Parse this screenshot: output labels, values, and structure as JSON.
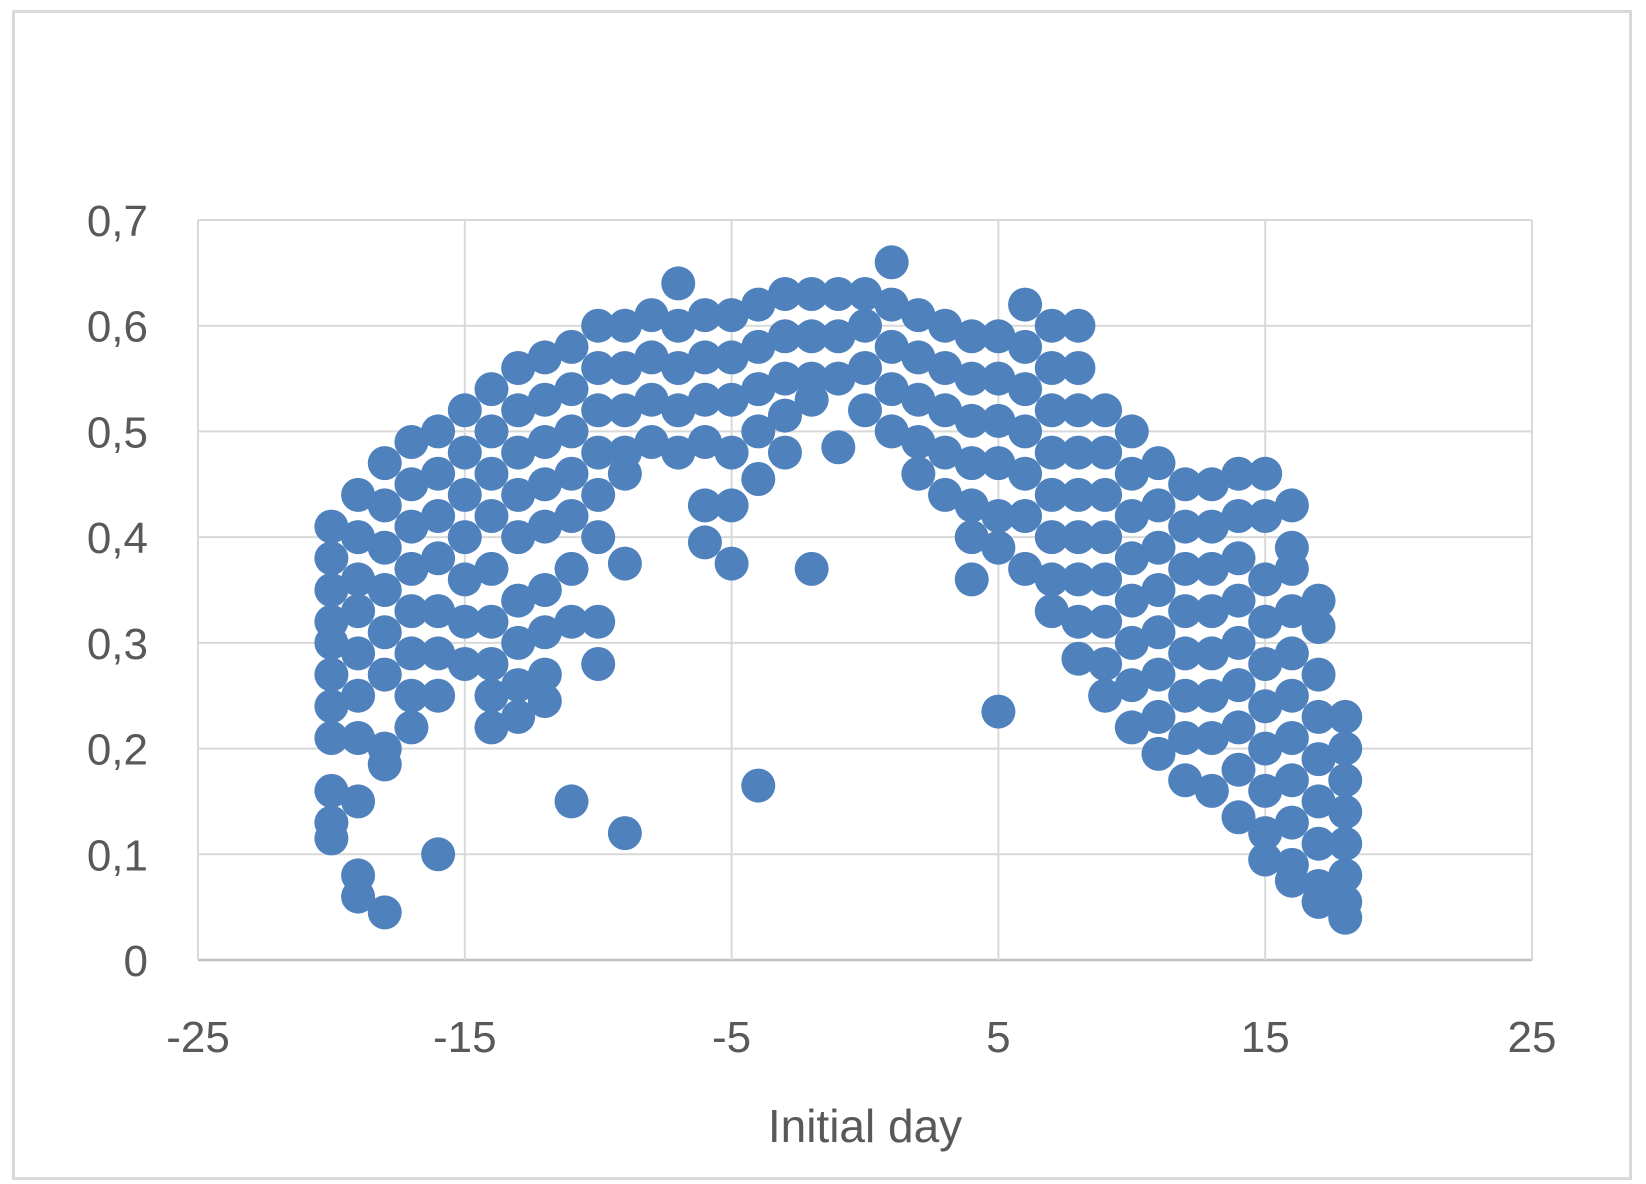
{
  "chart_data": {
    "type": "scatter",
    "title": "",
    "xlabel": "Initial day",
    "ylabel": "",
    "xlim": [
      -25,
      25
    ],
    "ylim": [
      0,
      0.7
    ],
    "x_ticks": [
      -25,
      -15,
      -5,
      5,
      15,
      25
    ],
    "y_ticks": [
      0,
      0.1,
      0.2,
      0.3,
      0.4,
      0.5,
      0.6,
      0.7
    ],
    "x_tick_labels": [
      "-25",
      "-15",
      "-5",
      "5",
      "15",
      "25"
    ],
    "y_tick_labels": [
      "0",
      "0,1",
      "0,2",
      "0,3",
      "0,4",
      "0,5",
      "0,6",
      "0,7"
    ],
    "grid": true,
    "legend": "none",
    "marker_color": "#4f81bd",
    "series": [
      {
        "points": [
          [
            -20,
            0.41
          ],
          [
            -20,
            0.38
          ],
          [
            -20,
            0.35
          ],
          [
            -20,
            0.32
          ],
          [
            -20,
            0.3
          ],
          [
            -20,
            0.27
          ],
          [
            -20,
            0.24
          ],
          [
            -20,
            0.21
          ],
          [
            -20,
            0.16
          ],
          [
            -20,
            0.13
          ],
          [
            -20,
            0.115
          ],
          [
            -19,
            0.44
          ],
          [
            -19,
            0.4
          ],
          [
            -19,
            0.36
          ],
          [
            -19,
            0.33
          ],
          [
            -19,
            0.29
          ],
          [
            -19,
            0.25
          ],
          [
            -19,
            0.21
          ],
          [
            -19,
            0.15
          ],
          [
            -19,
            0.08
          ],
          [
            -19,
            0.06
          ],
          [
            -18,
            0.47
          ],
          [
            -18,
            0.43
          ],
          [
            -18,
            0.39
          ],
          [
            -18,
            0.35
          ],
          [
            -18,
            0.31
          ],
          [
            -18,
            0.27
          ],
          [
            -18,
            0.2
          ],
          [
            -18,
            0.185
          ],
          [
            -18,
            0.045
          ],
          [
            -17,
            0.49
          ],
          [
            -17,
            0.45
          ],
          [
            -17,
            0.41
          ],
          [
            -17,
            0.37
          ],
          [
            -17,
            0.33
          ],
          [
            -17,
            0.29
          ],
          [
            -17,
            0.25
          ],
          [
            -17,
            0.22
          ],
          [
            -16,
            0.5
          ],
          [
            -16,
            0.46
          ],
          [
            -16,
            0.42
          ],
          [
            -16,
            0.38
          ],
          [
            -16,
            0.33
          ],
          [
            -16,
            0.29
          ],
          [
            -16,
            0.25
          ],
          [
            -16,
            0.1
          ],
          [
            -15,
            0.52
          ],
          [
            -15,
            0.48
          ],
          [
            -15,
            0.44
          ],
          [
            -15,
            0.4
          ],
          [
            -15,
            0.36
          ],
          [
            -15,
            0.32
          ],
          [
            -15,
            0.28
          ],
          [
            -14,
            0.54
          ],
          [
            -14,
            0.5
          ],
          [
            -14,
            0.46
          ],
          [
            -14,
            0.42
          ],
          [
            -14,
            0.37
          ],
          [
            -14,
            0.32
          ],
          [
            -14,
            0.28
          ],
          [
            -14,
            0.25
          ],
          [
            -14,
            0.22
          ],
          [
            -13,
            0.56
          ],
          [
            -13,
            0.52
          ],
          [
            -13,
            0.48
          ],
          [
            -13,
            0.44
          ],
          [
            -13,
            0.4
          ],
          [
            -13,
            0.34
          ],
          [
            -13,
            0.3
          ],
          [
            -13,
            0.26
          ],
          [
            -13,
            0.23
          ],
          [
            -12,
            0.57
          ],
          [
            -12,
            0.53
          ],
          [
            -12,
            0.49
          ],
          [
            -12,
            0.45
          ],
          [
            -12,
            0.41
          ],
          [
            -12,
            0.35
          ],
          [
            -12,
            0.31
          ],
          [
            -12,
            0.27
          ],
          [
            -12,
            0.245
          ],
          [
            -11,
            0.58
          ],
          [
            -11,
            0.54
          ],
          [
            -11,
            0.5
          ],
          [
            -11,
            0.46
          ],
          [
            -11,
            0.42
          ],
          [
            -11,
            0.37
          ],
          [
            -11,
            0.32
          ],
          [
            -11,
            0.15
          ],
          [
            -10,
            0.6
          ],
          [
            -10,
            0.56
          ],
          [
            -10,
            0.52
          ],
          [
            -10,
            0.48
          ],
          [
            -10,
            0.44
          ],
          [
            -10,
            0.4
          ],
          [
            -10,
            0.32
          ],
          [
            -10,
            0.28
          ],
          [
            -9,
            0.6
          ],
          [
            -9,
            0.56
          ],
          [
            -9,
            0.52
          ],
          [
            -9,
            0.48
          ],
          [
            -9,
            0.46
          ],
          [
            -9,
            0.375
          ],
          [
            -9,
            0.12
          ],
          [
            -8,
            0.61
          ],
          [
            -8,
            0.57
          ],
          [
            -8,
            0.53
          ],
          [
            -8,
            0.49
          ],
          [
            -7,
            0.64
          ],
          [
            -7,
            0.6
          ],
          [
            -7,
            0.56
          ],
          [
            -7,
            0.52
          ],
          [
            -7,
            0.48
          ],
          [
            -6,
            0.61
          ],
          [
            -6,
            0.57
          ],
          [
            -6,
            0.53
          ],
          [
            -6,
            0.49
          ],
          [
            -6,
            0.43
          ],
          [
            -6,
            0.395
          ],
          [
            -5,
            0.61
          ],
          [
            -5,
            0.57
          ],
          [
            -5,
            0.53
          ],
          [
            -5,
            0.48
          ],
          [
            -5,
            0.43
          ],
          [
            -5,
            0.375
          ],
          [
            -4,
            0.62
          ],
          [
            -4,
            0.58
          ],
          [
            -4,
            0.54
          ],
          [
            -4,
            0.5
          ],
          [
            -4,
            0.455
          ],
          [
            -4,
            0.165
          ],
          [
            -3,
            0.63
          ],
          [
            -3,
            0.59
          ],
          [
            -3,
            0.55
          ],
          [
            -3,
            0.515
          ],
          [
            -3,
            0.48
          ],
          [
            -2,
            0.63
          ],
          [
            -2,
            0.59
          ],
          [
            -2,
            0.55
          ],
          [
            -2,
            0.53
          ],
          [
            -2,
            0.37
          ],
          [
            -1,
            0.63
          ],
          [
            -1,
            0.59
          ],
          [
            -1,
            0.55
          ],
          [
            -1,
            0.485
          ],
          [
            0,
            0.63
          ],
          [
            0,
            0.6
          ],
          [
            0,
            0.56
          ],
          [
            0,
            0.52
          ],
          [
            1,
            0.66
          ],
          [
            1,
            0.62
          ],
          [
            1,
            0.58
          ],
          [
            1,
            0.54
          ],
          [
            1,
            0.5
          ],
          [
            2,
            0.61
          ],
          [
            2,
            0.57
          ],
          [
            2,
            0.53
          ],
          [
            2,
            0.49
          ],
          [
            2,
            0.46
          ],
          [
            3,
            0.6
          ],
          [
            3,
            0.56
          ],
          [
            3,
            0.52
          ],
          [
            3,
            0.48
          ],
          [
            3,
            0.44
          ],
          [
            4,
            0.59
          ],
          [
            4,
            0.55
          ],
          [
            4,
            0.51
          ],
          [
            4,
            0.47
          ],
          [
            4,
            0.43
          ],
          [
            4,
            0.4
          ],
          [
            4,
            0.36
          ],
          [
            5,
            0.59
          ],
          [
            5,
            0.55
          ],
          [
            5,
            0.51
          ],
          [
            5,
            0.47
          ],
          [
            5,
            0.42
          ],
          [
            5,
            0.39
          ],
          [
            5,
            0.235
          ],
          [
            6,
            0.62
          ],
          [
            6,
            0.58
          ],
          [
            6,
            0.54
          ],
          [
            6,
            0.5
          ],
          [
            6,
            0.46
          ],
          [
            6,
            0.42
          ],
          [
            6,
            0.37
          ],
          [
            7,
            0.6
          ],
          [
            7,
            0.56
          ],
          [
            7,
            0.52
          ],
          [
            7,
            0.48
          ],
          [
            7,
            0.44
          ],
          [
            7,
            0.4
          ],
          [
            7,
            0.36
          ],
          [
            7,
            0.33
          ],
          [
            8,
            0.6
          ],
          [
            8,
            0.56
          ],
          [
            8,
            0.52
          ],
          [
            8,
            0.48
          ],
          [
            8,
            0.44
          ],
          [
            8,
            0.4
          ],
          [
            8,
            0.36
          ],
          [
            8,
            0.32
          ],
          [
            8,
            0.285
          ],
          [
            9,
            0.52
          ],
          [
            9,
            0.48
          ],
          [
            9,
            0.44
          ],
          [
            9,
            0.4
          ],
          [
            9,
            0.36
          ],
          [
            9,
            0.32
          ],
          [
            9,
            0.28
          ],
          [
            9,
            0.25
          ],
          [
            10,
            0.5
          ],
          [
            10,
            0.46
          ],
          [
            10,
            0.42
          ],
          [
            10,
            0.38
          ],
          [
            10,
            0.34
          ],
          [
            10,
            0.3
          ],
          [
            10,
            0.26
          ],
          [
            10,
            0.22
          ],
          [
            11,
            0.47
          ],
          [
            11,
            0.43
          ],
          [
            11,
            0.39
          ],
          [
            11,
            0.35
          ],
          [
            11,
            0.31
          ],
          [
            11,
            0.27
          ],
          [
            11,
            0.23
          ],
          [
            11,
            0.195
          ],
          [
            12,
            0.45
          ],
          [
            12,
            0.41
          ],
          [
            12,
            0.37
          ],
          [
            12,
            0.33
          ],
          [
            12,
            0.29
          ],
          [
            12,
            0.25
          ],
          [
            12,
            0.21
          ],
          [
            12,
            0.17
          ],
          [
            13,
            0.45
          ],
          [
            13,
            0.41
          ],
          [
            13,
            0.37
          ],
          [
            13,
            0.33
          ],
          [
            13,
            0.29
          ],
          [
            13,
            0.25
          ],
          [
            13,
            0.21
          ],
          [
            13,
            0.16
          ],
          [
            14,
            0.46
          ],
          [
            14,
            0.42
          ],
          [
            14,
            0.38
          ],
          [
            14,
            0.34
          ],
          [
            14,
            0.3
          ],
          [
            14,
            0.26
          ],
          [
            14,
            0.22
          ],
          [
            14,
            0.18
          ],
          [
            14,
            0.135
          ],
          [
            15,
            0.46
          ],
          [
            15,
            0.42
          ],
          [
            15,
            0.36
          ],
          [
            15,
            0.32
          ],
          [
            15,
            0.28
          ],
          [
            15,
            0.24
          ],
          [
            15,
            0.2
          ],
          [
            15,
            0.16
          ],
          [
            15,
            0.12
          ],
          [
            15,
            0.095
          ],
          [
            16,
            0.43
          ],
          [
            16,
            0.39
          ],
          [
            16,
            0.37
          ],
          [
            16,
            0.33
          ],
          [
            16,
            0.29
          ],
          [
            16,
            0.25
          ],
          [
            16,
            0.21
          ],
          [
            16,
            0.17
          ],
          [
            16,
            0.13
          ],
          [
            16,
            0.09
          ],
          [
            16,
            0.075
          ],
          [
            17,
            0.34
          ],
          [
            17,
            0.315
          ],
          [
            17,
            0.27
          ],
          [
            17,
            0.23
          ],
          [
            17,
            0.19
          ],
          [
            17,
            0.15
          ],
          [
            17,
            0.11
          ],
          [
            17,
            0.07
          ],
          [
            17,
            0.055
          ],
          [
            18,
            0.23
          ],
          [
            18,
            0.2
          ],
          [
            18,
            0.17
          ],
          [
            18,
            0.14
          ],
          [
            18,
            0.11
          ],
          [
            18,
            0.08
          ],
          [
            18,
            0.055
          ],
          [
            18,
            0.04
          ]
        ]
      }
    ]
  }
}
